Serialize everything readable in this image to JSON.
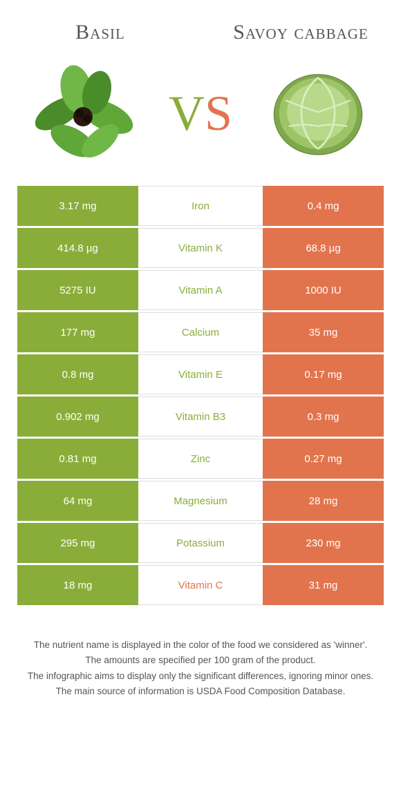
{
  "colors": {
    "left": "#8aad3a",
    "right": "#e2744d",
    "white": "#ffffff"
  },
  "header": {
    "left_title": "Basil",
    "right_title": "Savoy cabbage",
    "vs_v": "V",
    "vs_s": "S"
  },
  "rows": [
    {
      "nutrient": "Iron",
      "left": "3.17 mg",
      "right": "0.4 mg",
      "winner": "left"
    },
    {
      "nutrient": "Vitamin K",
      "left": "414.8 µg",
      "right": "68.8 µg",
      "winner": "left"
    },
    {
      "nutrient": "Vitamin A",
      "left": "5275 IU",
      "right": "1000 IU",
      "winner": "left"
    },
    {
      "nutrient": "Calcium",
      "left": "177 mg",
      "right": "35 mg",
      "winner": "left"
    },
    {
      "nutrient": "Vitamin E",
      "left": "0.8 mg",
      "right": "0.17 mg",
      "winner": "left"
    },
    {
      "nutrient": "Vitamin B3",
      "left": "0.902 mg",
      "right": "0.3 mg",
      "winner": "left"
    },
    {
      "nutrient": "Zinc",
      "left": "0.81 mg",
      "right": "0.27 mg",
      "winner": "left"
    },
    {
      "nutrient": "Magnesium",
      "left": "64 mg",
      "right": "28 mg",
      "winner": "left"
    },
    {
      "nutrient": "Potassium",
      "left": "295 mg",
      "right": "230 mg",
      "winner": "left"
    },
    {
      "nutrient": "Vitamin C",
      "left": "18 mg",
      "right": "31 mg",
      "winner": "right"
    }
  ],
  "footnotes": [
    "The nutrient name is displayed in the color of the food we considered as 'winner'.",
    "The amounts are specified per 100 gram of the product.",
    "The infographic aims to display only the significant differences, ignoring minor ones.",
    "The main source of information is USDA Food Composition Database."
  ]
}
